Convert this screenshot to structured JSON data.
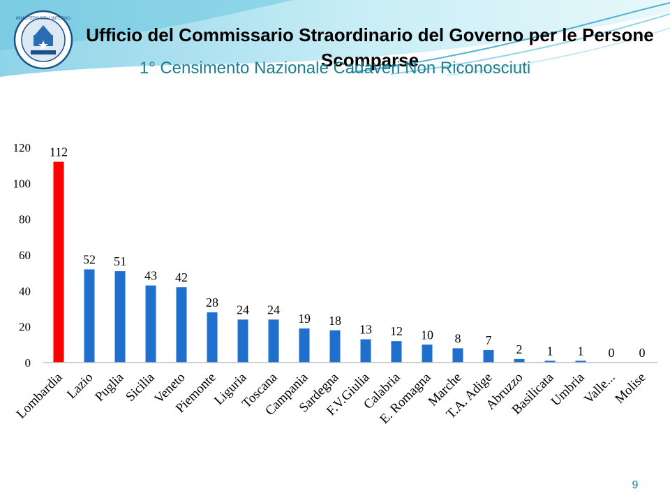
{
  "header": {
    "title": "Ufficio del Commissario Straordinario del Governo per le Persone Scomparse",
    "subtitle": "1° Censimento Nazionale Cadaveri Non Riconosciuti",
    "logo_text": "MINISTERO DELL'INTERNO"
  },
  "page_number": "9",
  "colors": {
    "highlight": "#ff0000",
    "bar": "#1f6fcd",
    "accent": "#1a7d93"
  },
  "chart_data": {
    "type": "bar",
    "categories": [
      "Lombardia",
      "Lazio",
      "Puglia",
      "Sicilia",
      "Veneto",
      "Piemonte",
      "Liguria",
      "Toscana",
      "Campania",
      "Sardegna",
      "F.V.Giulia",
      "Calabria",
      "E. Romagna",
      "Marche",
      "T.A. Adige",
      "Abruzzo",
      "Basilicata",
      "Umbria",
      "Valle...",
      "Molise"
    ],
    "values": [
      112,
      52,
      51,
      43,
      42,
      28,
      24,
      24,
      19,
      18,
      13,
      12,
      10,
      8,
      7,
      2,
      1,
      1,
      0,
      0
    ],
    "highlight_index": 0,
    "ylim": [
      0,
      120
    ],
    "yticks": [
      0,
      20,
      40,
      60,
      80,
      100,
      120
    ],
    "grid": false,
    "legend": "none",
    "title": "",
    "xlabel": "",
    "ylabel": ""
  }
}
